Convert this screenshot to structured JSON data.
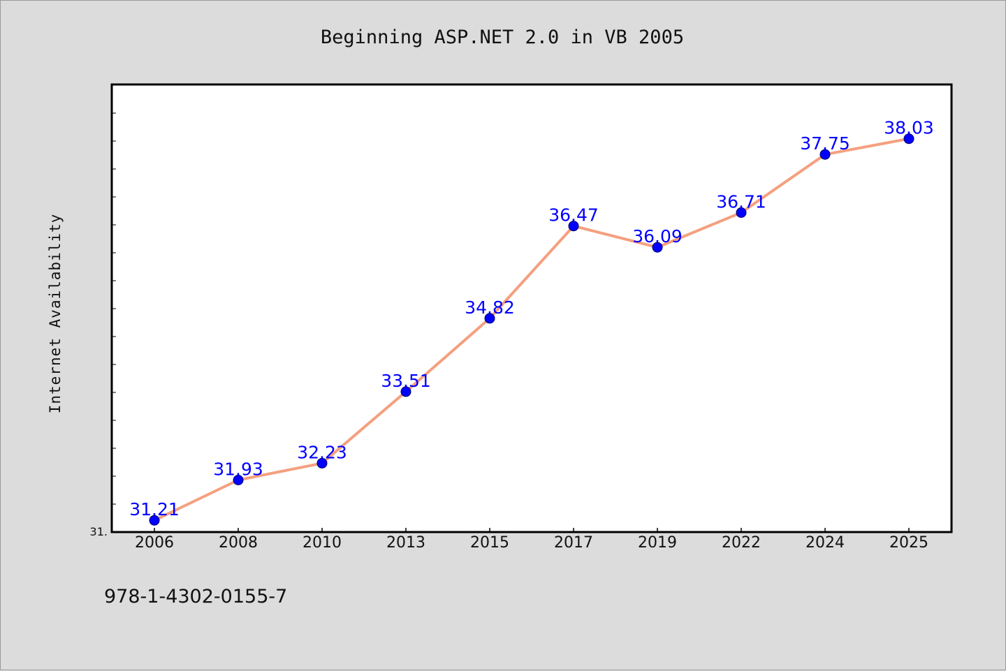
{
  "chart_data": {
    "type": "line",
    "title": "Beginning ASP.NET 2.0 in VB 2005",
    "xlabel": "",
    "ylabel": "Internet Availability",
    "categories": [
      "2006",
      "2008",
      "2010",
      "2013",
      "2015",
      "2017",
      "2019",
      "2022",
      "2024",
      "2025"
    ],
    "series": [
      {
        "values": [
          31.21,
          31.93,
          32.23,
          33.51,
          34.82,
          36.47,
          36.09,
          36.71,
          37.75,
          38.03
        ],
        "labels": [
          "31.21",
          "31.93",
          "32.23",
          "33.51",
          "34.82",
          "36.47",
          "36.09",
          "36.71",
          "37.75",
          "38.03"
        ]
      }
    ],
    "ylim": [
      31,
      39
    ],
    "ytick_label": "31.",
    "grid": false,
    "legend": "none",
    "colors": {
      "line": "#f4a07f",
      "marker": "#0000ff",
      "data_label": "#0000ff",
      "background": "#dcdcdc",
      "plot_background": "#ffffff"
    }
  },
  "footer": {
    "isbn": "978-1-4302-0155-7"
  }
}
